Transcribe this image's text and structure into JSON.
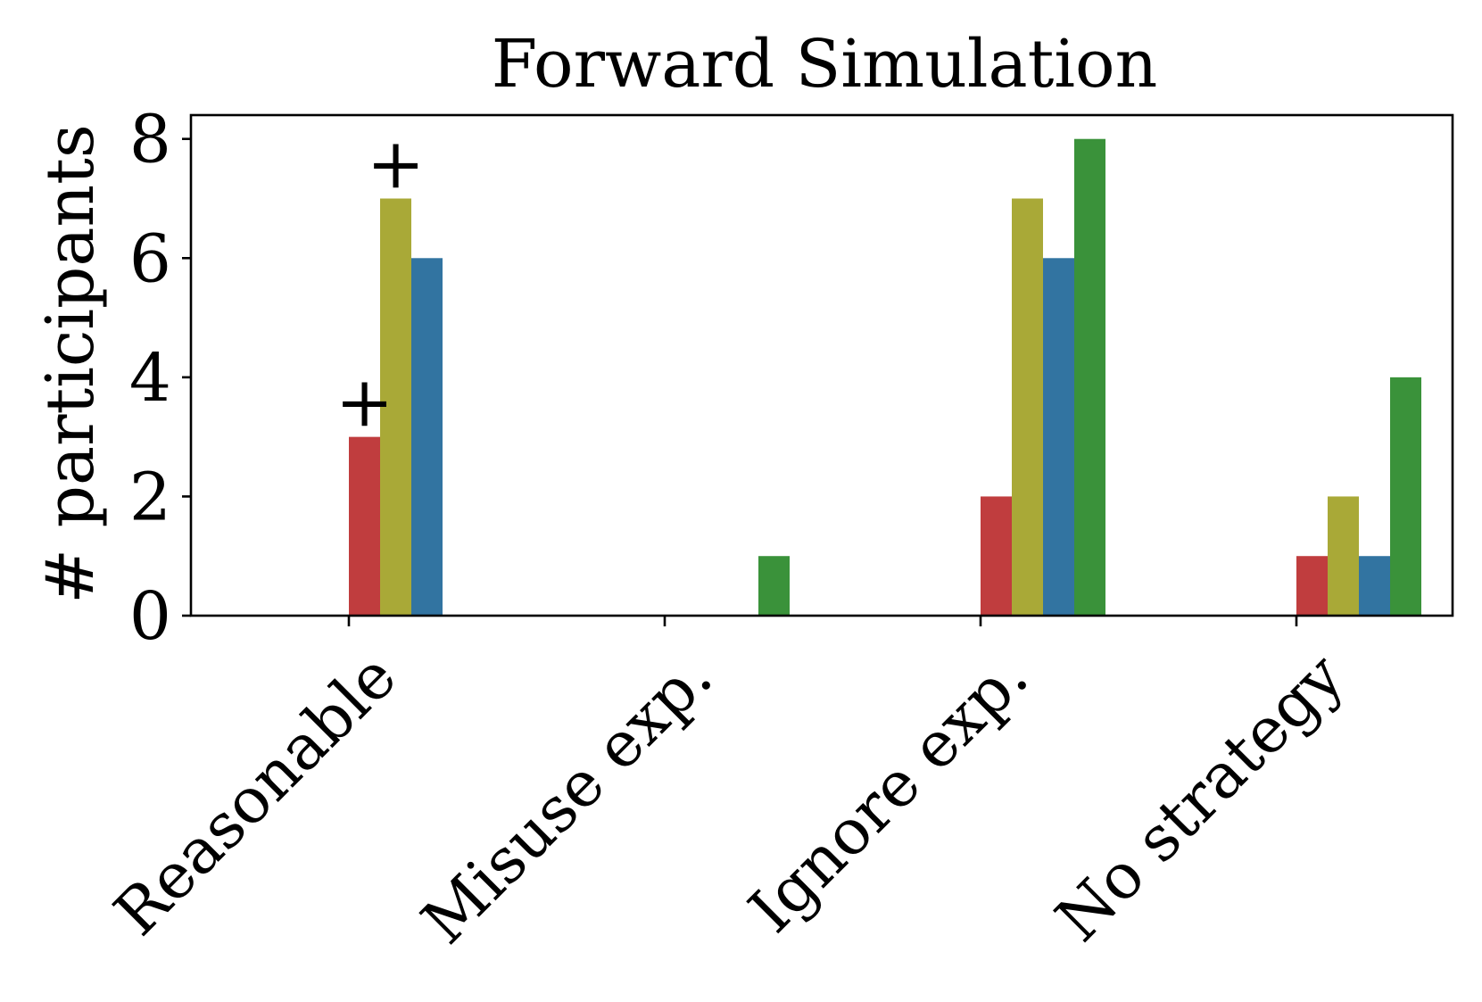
{
  "chart_data": {
    "type": "bar",
    "title": "Forward Simulation",
    "xlabel": "",
    "ylabel": "# participants",
    "categories": [
      "Reasonable",
      "Misuse exp.",
      "Ignore exp.",
      "No strategy"
    ],
    "ylim": [
      0,
      8.4
    ],
    "yticks": [
      0,
      2,
      4,
      6,
      8
    ],
    "grid": false,
    "legend": "none",
    "series": [
      {
        "name": "red",
        "color": "#c03d3e",
        "values": [
          3,
          0,
          2,
          1
        ]
      },
      {
        "name": "olive",
        "color": "#a9a937",
        "values": [
          7,
          0,
          7,
          2
        ]
      },
      {
        "name": "blue",
        "color": "#3274a1",
        "values": [
          6,
          0,
          6,
          1
        ]
      },
      {
        "name": "green",
        "color": "#3a923a",
        "values": [
          0,
          1,
          8,
          4
        ]
      }
    ],
    "annotations": [
      {
        "text": "+",
        "category": "Reasonable",
        "series": "red"
      },
      {
        "text": "+",
        "category": "Reasonable",
        "series": "olive"
      }
    ]
  }
}
